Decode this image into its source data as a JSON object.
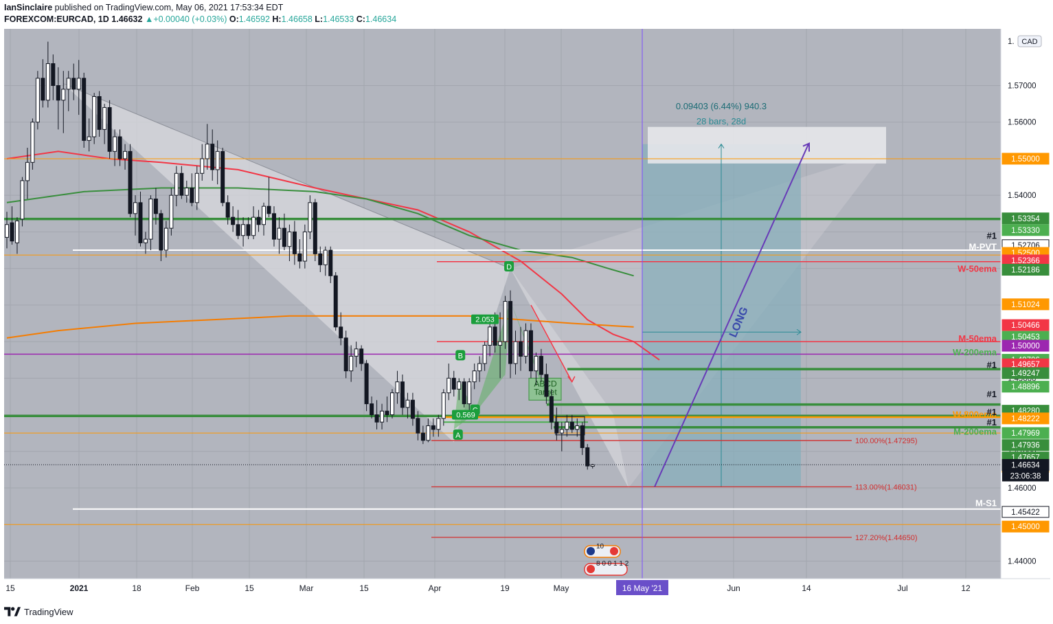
{
  "header": {
    "author": "IanSinclaire",
    "published_text": "published on TradingView.com, May 06, 2021 17:53:34 EDT",
    "symbol": "FOREXCOM:EURCAD, 1D",
    "last": "1.46632",
    "change": "+0.00040 (+0.03%)",
    "o_label": "O:",
    "o_value": "1.46592",
    "h_label": "H:",
    "h_value": "1.46658",
    "l_label": "L:",
    "l_value": "1.46533",
    "c_label": "C:",
    "c_value": "1.46634"
  },
  "footer": {
    "brand": "TradingView"
  },
  "chart_data": {
    "type": "candlestick",
    "currency_badge": "CAD",
    "y_axis": {
      "ylim": [
        1.4352,
        1.5855
      ],
      "ticks": [
        "1.57000",
        "1.56000",
        "1.55000",
        "1.54000",
        "1.53000",
        "1.52000",
        "1.51000",
        "1.50000",
        "1.49000",
        "1.48000",
        "1.47000",
        "1.46000",
        "1.45000",
        "1.44000"
      ],
      "top_partial_label": "1."
    },
    "x_axis": {
      "labels": [
        "15",
        "2021",
        "18",
        "Feb",
        "15",
        "Mar",
        "15",
        "Apr",
        "19",
        "May",
        "Jun",
        "14",
        "Jul",
        "12"
      ],
      "highlight_label": "16 May '21"
    },
    "candles": [
      {
        "o": 1.5285,
        "h": 1.5355,
        "l": 1.5255,
        "c": 1.532
      },
      {
        "o": 1.5325,
        "h": 1.537,
        "l": 1.5265,
        "c": 1.5275
      },
      {
        "o": 1.527,
        "h": 1.534,
        "l": 1.524,
        "c": 1.533
      },
      {
        "o": 1.5335,
        "h": 1.545,
        "l": 1.5315,
        "c": 1.544
      },
      {
        "o": 1.544,
        "h": 1.553,
        "l": 1.539,
        "c": 1.549
      },
      {
        "o": 1.549,
        "h": 1.561,
        "l": 1.547,
        "c": 1.56
      },
      {
        "o": 1.56,
        "h": 1.574,
        "l": 1.558,
        "c": 1.572
      },
      {
        "o": 1.572,
        "h": 1.5772,
        "l": 1.564,
        "c": 1.566
      },
      {
        "o": 1.566,
        "h": 1.582,
        "l": 1.564,
        "c": 1.576
      },
      {
        "o": 1.576,
        "h": 1.5785,
        "l": 1.566,
        "c": 1.57
      },
      {
        "o": 1.57,
        "h": 1.575,
        "l": 1.558,
        "c": 1.566
      },
      {
        "o": 1.566,
        "h": 1.574,
        "l": 1.557,
        "c": 1.569
      },
      {
        "o": 1.569,
        "h": 1.574,
        "l": 1.563,
        "c": 1.572
      },
      {
        "o": 1.572,
        "h": 1.576,
        "l": 1.566,
        "c": 1.569
      },
      {
        "o": 1.569,
        "h": 1.577,
        "l": 1.562,
        "c": 1.572
      },
      {
        "o": 1.572,
        "h": 1.5735,
        "l": 1.553,
        "c": 1.555
      },
      {
        "o": 1.555,
        "h": 1.561,
        "l": 1.552,
        "c": 1.556
      },
      {
        "o": 1.556,
        "h": 1.568,
        "l": 1.554,
        "c": 1.567
      },
      {
        "o": 1.567,
        "h": 1.5685,
        "l": 1.556,
        "c": 1.558
      },
      {
        "o": 1.558,
        "h": 1.565,
        "l": 1.554,
        "c": 1.564
      },
      {
        "o": 1.564,
        "h": 1.566,
        "l": 1.55,
        "c": 1.552
      },
      {
        "o": 1.552,
        "h": 1.558,
        "l": 1.548,
        "c": 1.556
      },
      {
        "o": 1.556,
        "h": 1.558,
        "l": 1.548,
        "c": 1.55
      },
      {
        "o": 1.55,
        "h": 1.554,
        "l": 1.547,
        "c": 1.552
      },
      {
        "o": 1.552,
        "h": 1.554,
        "l": 1.534,
        "c": 1.535
      },
      {
        "o": 1.535,
        "h": 1.54,
        "l": 1.529,
        "c": 1.538
      },
      {
        "o": 1.538,
        "h": 1.541,
        "l": 1.526,
        "c": 1.527
      },
      {
        "o": 1.527,
        "h": 1.53,
        "l": 1.524,
        "c": 1.528
      },
      {
        "o": 1.528,
        "h": 1.54,
        "l": 1.525,
        "c": 1.539
      },
      {
        "o": 1.539,
        "h": 1.542,
        "l": 1.532,
        "c": 1.535
      },
      {
        "o": 1.535,
        "h": 1.536,
        "l": 1.522,
        "c": 1.525
      },
      {
        "o": 1.525,
        "h": 1.533,
        "l": 1.523,
        "c": 1.531
      },
      {
        "o": 1.531,
        "h": 1.542,
        "l": 1.529,
        "c": 1.54
      },
      {
        "o": 1.54,
        "h": 1.548,
        "l": 1.537,
        "c": 1.546
      },
      {
        "o": 1.546,
        "h": 1.548,
        "l": 1.539,
        "c": 1.54
      },
      {
        "o": 1.54,
        "h": 1.544,
        "l": 1.538,
        "c": 1.542
      },
      {
        "o": 1.542,
        "h": 1.546,
        "l": 1.537,
        "c": 1.538
      },
      {
        "o": 1.538,
        "h": 1.548,
        "l": 1.536,
        "c": 1.546
      },
      {
        "o": 1.546,
        "h": 1.554,
        "l": 1.544,
        "c": 1.55
      },
      {
        "o": 1.55,
        "h": 1.5595,
        "l": 1.547,
        "c": 1.554
      },
      {
        "o": 1.554,
        "h": 1.558,
        "l": 1.544,
        "c": 1.547
      },
      {
        "o": 1.547,
        "h": 1.555,
        "l": 1.543,
        "c": 1.552
      },
      {
        "o": 1.552,
        "h": 1.553,
        "l": 1.537,
        "c": 1.538
      },
      {
        "o": 1.538,
        "h": 1.54,
        "l": 1.532,
        "c": 1.534
      },
      {
        "o": 1.534,
        "h": 1.537,
        "l": 1.53,
        "c": 1.532
      },
      {
        "o": 1.532,
        "h": 1.536,
        "l": 1.528,
        "c": 1.529
      },
      {
        "o": 1.529,
        "h": 1.534,
        "l": 1.526,
        "c": 1.532
      },
      {
        "o": 1.532,
        "h": 1.534,
        "l": 1.528,
        "c": 1.529
      },
      {
        "o": 1.529,
        "h": 1.537,
        "l": 1.528,
        "c": 1.534
      },
      {
        "o": 1.534,
        "h": 1.536,
        "l": 1.53,
        "c": 1.532
      },
      {
        "o": 1.532,
        "h": 1.538,
        "l": 1.529,
        "c": 1.537
      },
      {
        "o": 1.537,
        "h": 1.545,
        "l": 1.534,
        "c": 1.535
      },
      {
        "o": 1.535,
        "h": 1.537,
        "l": 1.526,
        "c": 1.528
      },
      {
        "o": 1.528,
        "h": 1.534,
        "l": 1.524,
        "c": 1.531
      },
      {
        "o": 1.531,
        "h": 1.535,
        "l": 1.525,
        "c": 1.526
      },
      {
        "o": 1.526,
        "h": 1.532,
        "l": 1.522,
        "c": 1.53
      },
      {
        "o": 1.53,
        "h": 1.533,
        "l": 1.521,
        "c": 1.524
      },
      {
        "o": 1.524,
        "h": 1.528,
        "l": 1.52,
        "c": 1.522
      },
      {
        "o": 1.522,
        "h": 1.532,
        "l": 1.52,
        "c": 1.53
      },
      {
        "o": 1.53,
        "h": 1.54,
        "l": 1.528,
        "c": 1.538
      },
      {
        "o": 1.538,
        "h": 1.539,
        "l": 1.522,
        "c": 1.524
      },
      {
        "o": 1.524,
        "h": 1.526,
        "l": 1.519,
        "c": 1.521
      },
      {
        "o": 1.521,
        "h": 1.526,
        "l": 1.518,
        "c": 1.525
      },
      {
        "o": 1.525,
        "h": 1.526,
        "l": 1.516,
        "c": 1.518
      },
      {
        "o": 1.518,
        "h": 1.519,
        "l": 1.503,
        "c": 1.504
      },
      {
        "o": 1.504,
        "h": 1.508,
        "l": 1.499,
        "c": 1.501
      },
      {
        "o": 1.501,
        "h": 1.503,
        "l": 1.49,
        "c": 1.492
      },
      {
        "o": 1.492,
        "h": 1.499,
        "l": 1.489,
        "c": 1.496
      },
      {
        "o": 1.496,
        "h": 1.5,
        "l": 1.493,
        "c": 1.498
      },
      {
        "o": 1.498,
        "h": 1.499,
        "l": 1.492,
        "c": 1.494
      },
      {
        "o": 1.494,
        "h": 1.495,
        "l": 1.481,
        "c": 1.483
      },
      {
        "o": 1.483,
        "h": 1.485,
        "l": 1.479,
        "c": 1.48
      },
      {
        "o": 1.48,
        "h": 1.484,
        "l": 1.476,
        "c": 1.478
      },
      {
        "o": 1.478,
        "h": 1.483,
        "l": 1.476,
        "c": 1.481
      },
      {
        "o": 1.481,
        "h": 1.485,
        "l": 1.478,
        "c": 1.48
      },
      {
        "o": 1.48,
        "h": 1.487,
        "l": 1.479,
        "c": 1.486
      },
      {
        "o": 1.486,
        "h": 1.492,
        "l": 1.483,
        "c": 1.489
      },
      {
        "o": 1.489,
        "h": 1.491,
        "l": 1.48,
        "c": 1.482
      },
      {
        "o": 1.482,
        "h": 1.486,
        "l": 1.479,
        "c": 1.484
      },
      {
        "o": 1.484,
        "h": 1.486,
        "l": 1.477,
        "c": 1.479
      },
      {
        "o": 1.479,
        "h": 1.481,
        "l": 1.473,
        "c": 1.475
      },
      {
        "o": 1.475,
        "h": 1.477,
        "l": 1.472,
        "c": 1.473
      },
      {
        "o": 1.473,
        "h": 1.479,
        "l": 1.4725,
        "c": 1.477
      },
      {
        "o": 1.477,
        "h": 1.479,
        "l": 1.474,
        "c": 1.476
      },
      {
        "o": 1.476,
        "h": 1.48,
        "l": 1.474,
        "c": 1.479
      },
      {
        "o": 1.479,
        "h": 1.487,
        "l": 1.477,
        "c": 1.486
      },
      {
        "o": 1.486,
        "h": 1.494,
        "l": 1.484,
        "c": 1.49
      },
      {
        "o": 1.49,
        "h": 1.492,
        "l": 1.485,
        "c": 1.487
      },
      {
        "o": 1.487,
        "h": 1.49,
        "l": 1.484,
        "c": 1.489
      },
      {
        "o": 1.489,
        "h": 1.49,
        "l": 1.482,
        "c": 1.483
      },
      {
        "o": 1.483,
        "h": 1.49,
        "l": 1.481,
        "c": 1.489
      },
      {
        "o": 1.489,
        "h": 1.494,
        "l": 1.487,
        "c": 1.492
      },
      {
        "o": 1.492,
        "h": 1.496,
        "l": 1.489,
        "c": 1.494
      },
      {
        "o": 1.494,
        "h": 1.5,
        "l": 1.492,
        "c": 1.499
      },
      {
        "o": 1.499,
        "h": 1.507,
        "l": 1.496,
        "c": 1.504
      },
      {
        "o": 1.504,
        "h": 1.508,
        "l": 1.497,
        "c": 1.499
      },
      {
        "o": 1.499,
        "h": 1.508,
        "l": 1.49,
        "c": 1.5
      },
      {
        "o": 1.5,
        "h": 1.5125,
        "l": 1.498,
        "c": 1.511
      },
      {
        "o": 1.511,
        "h": 1.514,
        "l": 1.49,
        "c": 1.494
      },
      {
        "o": 1.494,
        "h": 1.503,
        "l": 1.491,
        "c": 1.5
      },
      {
        "o": 1.5,
        "h": 1.504,
        "l": 1.492,
        "c": 1.496
      },
      {
        "o": 1.496,
        "h": 1.505,
        "l": 1.494,
        "c": 1.503
      },
      {
        "o": 1.503,
        "h": 1.505,
        "l": 1.49,
        "c": 1.492
      },
      {
        "o": 1.492,
        "h": 1.497,
        "l": 1.488,
        "c": 1.496
      },
      {
        "o": 1.496,
        "h": 1.498,
        "l": 1.489,
        "c": 1.491
      },
      {
        "o": 1.491,
        "h": 1.494,
        "l": 1.483,
        "c": 1.485
      },
      {
        "o": 1.485,
        "h": 1.487,
        "l": 1.476,
        "c": 1.478
      },
      {
        "o": 1.478,
        "h": 1.482,
        "l": 1.473,
        "c": 1.475
      },
      {
        "o": 1.475,
        "h": 1.478,
        "l": 1.47,
        "c": 1.476
      },
      {
        "o": 1.476,
        "h": 1.48,
        "l": 1.474,
        "c": 1.478
      },
      {
        "o": 1.478,
        "h": 1.48,
        "l": 1.475,
        "c": 1.476
      },
      {
        "o": 1.476,
        "h": 1.479,
        "l": 1.474,
        "c": 1.477
      },
      {
        "o": 1.477,
        "h": 1.478,
        "l": 1.469,
        "c": 1.471
      },
      {
        "o": 1.471,
        "h": 1.472,
        "l": 1.465,
        "c": 1.466
      },
      {
        "o": 1.46592,
        "h": 1.46658,
        "l": 1.46533,
        "c": 1.46634
      }
    ],
    "moving_averages": [
      {
        "name": "red-ema",
        "color": "#f23645",
        "points": [
          [
            1.55,
            0
          ],
          [
            1.552,
            10
          ],
          [
            1.55,
            20
          ],
          [
            1.549,
            30
          ],
          [
            1.547,
            45
          ],
          [
            1.542,
            60
          ],
          [
            1.536,
            80
          ],
          [
            1.53,
            90
          ],
          [
            1.522,
            100
          ],
          [
            1.513,
            108
          ],
          [
            1.506,
            113
          ],
          [
            1.502,
            118
          ],
          [
            1.5,
            122
          ],
          [
            1.495,
            127
          ]
        ]
      },
      {
        "name": "green-sma",
        "color": "#388e3c",
        "points": [
          [
            1.538,
            0
          ],
          [
            1.541,
            15
          ],
          [
            1.542,
            30
          ],
          [
            1.542,
            45
          ],
          [
            1.541,
            60
          ],
          [
            1.539,
            70
          ],
          [
            1.535,
            80
          ],
          [
            1.529,
            90
          ],
          [
            1.525,
            100
          ],
          [
            1.523,
            110
          ],
          [
            1.52,
            117
          ],
          [
            1.518,
            122
          ]
        ]
      },
      {
        "name": "orange-sma",
        "color": "#f57c00",
        "points": [
          [
            1.501,
            0
          ],
          [
            1.503,
            10
          ],
          [
            1.505,
            25
          ],
          [
            1.506,
            40
          ],
          [
            1.507,
            55
          ],
          [
            1.507,
            65
          ],
          [
            1.507,
            75
          ],
          [
            1.507,
            90
          ],
          [
            1.506,
            100
          ],
          [
            1.505,
            110
          ],
          [
            1.504,
            122
          ]
        ]
      }
    ],
    "horizontal_levels": [
      {
        "price": 1.55,
        "color": "#ff9800",
        "style": "thin",
        "tag": "1.55000",
        "tag_bg": "#ff9800"
      },
      {
        "price": 1.53354,
        "color": "#388e3c",
        "style": "thick",
        "tag": "1.53354",
        "tag_bg": "#388e3c"
      },
      {
        "price": 1.5333,
        "color": "#4caf50",
        "style": "none",
        "tag": "1.53330",
        "tag_bg": "#4caf50"
      },
      {
        "price": 1.52706,
        "color": "#ffffff",
        "style": "none",
        "tag": "1.52706",
        "tag_bg": "#ffffff"
      },
      {
        "price": 1.525,
        "color": "#ffffff",
        "style": "white",
        "tag": "1.52500",
        "tag_bg": "#ff9800"
      },
      {
        "price": 1.52366,
        "color": "#ff9800",
        "style": "thin",
        "tag": "1.52366",
        "tag_bg": "#f23645"
      },
      {
        "price": 1.52186,
        "color": "#f23645",
        "style": "red",
        "tag": "1.52186",
        "tag_bg": "#388e3c"
      },
      {
        "price": 1.51024,
        "color": "#ff9800",
        "style": "none",
        "tag": "1.51024",
        "tag_bg": "#ff9800"
      },
      {
        "price": 1.50466,
        "color": "#f23645",
        "style": "none",
        "tag": "1.50466",
        "tag_bg": "#f23645"
      },
      {
        "price": 1.50453,
        "color": "#4caf50",
        "style": "none",
        "tag": "1.50453",
        "tag_bg": "#4caf50"
      },
      {
        "price": 1.5,
        "color": "#f23645",
        "style": "red",
        "tag": "1.50000",
        "tag_bg": "#9c27b0"
      },
      {
        "price": 1.49706,
        "color": "#4caf50",
        "style": "none",
        "tag": "1.49706",
        "tag_bg": "#4caf50"
      },
      {
        "price": 1.49657,
        "color": "#9c27b0",
        "style": "purple",
        "tag": "1.49657",
        "tag_bg": "#f23645"
      },
      {
        "price": 1.49247,
        "color": "#388e3c",
        "style": "thick",
        "tag": "1.49247",
        "tag_bg": "#388e3c"
      },
      {
        "price": 1.48896,
        "color": "#4caf50",
        "style": "none",
        "tag": "1.48896",
        "tag_bg": "#4caf50"
      },
      {
        "price": 1.4828,
        "color": "#388e3c",
        "style": "thick",
        "tag": "1.48280",
        "tag_bg": "#388e3c"
      },
      {
        "price": 1.48222,
        "color": "#ff9800",
        "style": "none",
        "tag": "1.48222",
        "tag_bg": "#ff9800"
      },
      {
        "price": 1.47969,
        "color": "#388e3c",
        "style": "thick",
        "tag": "1.47969",
        "tag_bg": "#4caf50"
      },
      {
        "price": 1.47936,
        "color": "#ff9800",
        "style": "thick",
        "tag": "1.47936",
        "tag_bg": "#388e3c"
      },
      {
        "price": 1.47657,
        "color": "#388e3c",
        "style": "thick",
        "tag": "1.47657",
        "tag_bg": "#388e3c"
      },
      {
        "price": 1.475,
        "color": "#ff9800",
        "style": "thin",
        "tag": "1.47500",
        "tag_bg": "#ff9800"
      },
      {
        "price": 1.46634,
        "color": "#131722",
        "style": "dotted",
        "tag": "1.46634",
        "tag_bg": "#131722"
      },
      {
        "price": 1.45422,
        "color": "#ffffff",
        "style": "white",
        "tag": "1.45422",
        "tag_bg": "#ffffff"
      },
      {
        "price": 1.45,
        "color": "#ff9800",
        "style": "thin",
        "tag": "1.45000",
        "tag_bg": "#ff9800"
      }
    ],
    "countdown": "23:06:38",
    "level_labels": [
      {
        "text": "#1",
        "color": "#131722"
      },
      {
        "text": "M-PVT",
        "color": "#ffffff"
      },
      {
        "text": "W-50ema",
        "color": "#f23645"
      },
      {
        "text": "M-50ema",
        "color": "#f23645"
      },
      {
        "text": "W-200ema",
        "color": "#4caf50"
      },
      {
        "text": "#1",
        "color": "#131722"
      },
      {
        "text": "#1",
        "color": "#131722"
      },
      {
        "text": "W-800ema",
        "color": "#ff9800"
      },
      {
        "text": "#1",
        "color": "#131722"
      },
      {
        "text": "#1",
        "color": "#131722"
      },
      {
        "text": "M-200ema",
        "color": "#4caf50"
      },
      {
        "text": "M-S1",
        "color": "#ffffff"
      }
    ],
    "fib_labels": [
      {
        "text": "100.00%(1.47295)",
        "price": 1.47295
      },
      {
        "text": "113.00%(1.46031)",
        "price": 1.46031
      },
      {
        "text": "127.20%(1.44650)",
        "price": 1.4465
      }
    ],
    "pattern_points": {
      "A": "A",
      "B": "B",
      "C": "C",
      "D": "D",
      "ratio1": "2.053",
      "ratio2": "0.569"
    },
    "abcd_label": "ABCD\nTarget",
    "long_position": {
      "label": "LONG",
      "stat1": "0.09403 (6.44%) 940.3",
      "stat2": "28 bars, 28d"
    },
    "events": {
      "e1": "10",
      "e2": "8 0 0 1 1 2"
    }
  }
}
